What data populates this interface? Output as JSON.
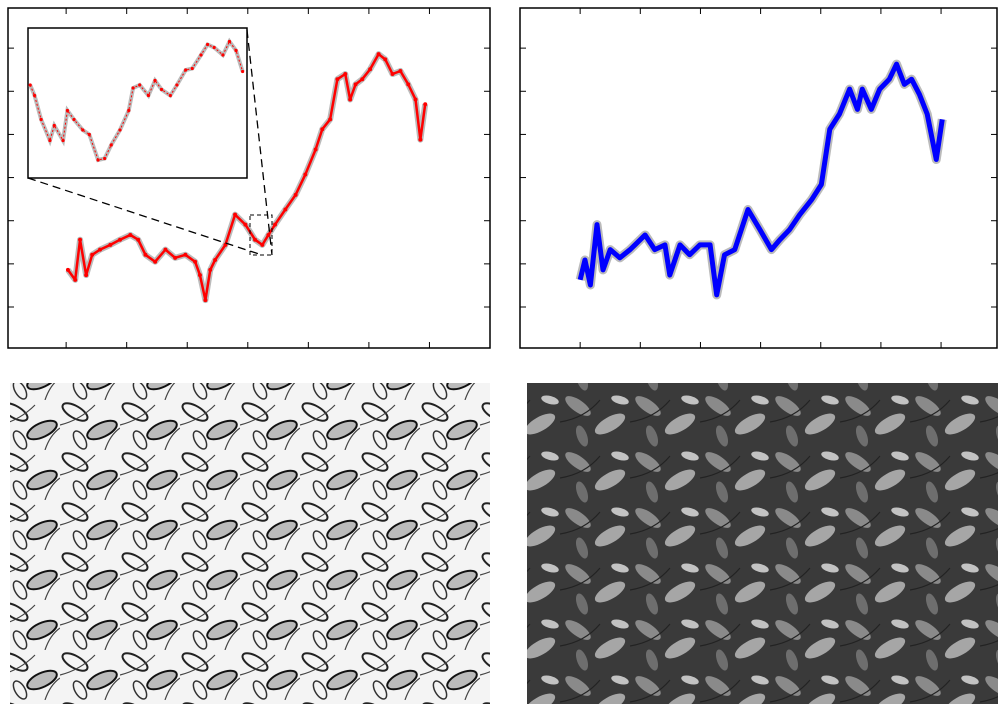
{
  "chart_data": [
    {
      "type": "line",
      "x": [
        0.03,
        0.15,
        0.23,
        0.33,
        0.43,
        0.56,
        0.73,
        0.89,
        1.06,
        1.19,
        1.31,
        1.47,
        1.64,
        1.8,
        1.97,
        2.13,
        2.21,
        2.3,
        2.38,
        2.46,
        2.63,
        2.79,
        2.96,
        3.12,
        3.24,
        3.34,
        3.45,
        3.62,
        3.79,
        3.95,
        4.12,
        4.23,
        4.36,
        4.48,
        4.61,
        4.69,
        4.78,
        4.89,
        5.02,
        5.16,
        5.27,
        5.39,
        5.52,
        5.65,
        5.77,
        5.85,
        5.93
      ],
      "series": [
        {
          "color": "#ff0000",
          "values": [
            0.86,
            0.63,
            1.56,
            0.74,
            1.21,
            1.33,
            1.44,
            1.56,
            1.67,
            1.56,
            1.21,
            1.05,
            1.33,
            1.14,
            1.21,
            1.05,
            0.74,
            0.16,
            0.86,
            1.09,
            1.44,
            2.14,
            1.91,
            1.56,
            1.44,
            1.67,
            1.91,
            2.26,
            2.6,
            3.07,
            3.65,
            4.12,
            4.35,
            5.28,
            5.4,
            4.81,
            5.16,
            5.28,
            5.51,
            5.86,
            5.74,
            5.4,
            5.47,
            5.16,
            4.81,
            3.88,
            4.7
          ]
        }
      ],
      "xlim": [
        -0.96,
        7.0
      ],
      "ylim": [
        -0.95,
        6.93
      ],
      "xticks": [
        0,
        1,
        2,
        3,
        4,
        5,
        6
      ],
      "yticks": [
        0,
        1,
        2,
        3,
        4,
        5,
        6
      ],
      "inset": {
        "x": [
          0.01,
          0.03,
          0.06,
          0.1,
          0.12,
          0.16,
          0.18,
          0.21,
          0.25,
          0.28,
          0.32,
          0.35,
          0.38,
          0.42,
          0.46,
          0.48,
          0.51,
          0.55,
          0.58,
          0.61,
          0.65,
          0.68,
          0.72,
          0.75,
          0.79,
          0.82,
          0.85,
          0.89,
          0.92,
          0.95,
          0.98
        ],
        "values": [
          0.62,
          0.55,
          0.39,
          0.25,
          0.35,
          0.25,
          0.45,
          0.39,
          0.32,
          0.29,
          0.12,
          0.13,
          0.22,
          0.32,
          0.45,
          0.6,
          0.62,
          0.55,
          0.65,
          0.59,
          0.55,
          0.62,
          0.72,
          0.73,
          0.82,
          0.89,
          0.87,
          0.82,
          0.91,
          0.85,
          0.71
        ],
        "xlim": [
          0,
          1
        ],
        "ylim": [
          0,
          1
        ]
      }
    },
    {
      "type": "line",
      "x": [
        0,
        0.08,
        0.17,
        0.28,
        0.38,
        0.5,
        0.66,
        0.83,
        1.08,
        1.24,
        1.41,
        1.49,
        1.66,
        1.82,
        1.99,
        2.16,
        2.27,
        2.4,
        2.57,
        2.79,
        2.99,
        3.18,
        3.32,
        3.48,
        3.65,
        3.85,
        4.01,
        4.15,
        4.31,
        4.48,
        4.61,
        4.69,
        4.84,
        4.98,
        5.14,
        5.26,
        5.39,
        5.51,
        5.64,
        5.77,
        5.92,
        6.02
      ],
      "series": [
        {
          "color": "#0000ff",
          "values": [
            0.63,
            1.09,
            0.51,
            1.91,
            0.86,
            1.33,
            1.14,
            1.33,
            1.67,
            1.33,
            1.44,
            0.74,
            1.44,
            1.21,
            1.44,
            1.44,
            0.28,
            1.21,
            1.33,
            2.26,
            1.79,
            1.33,
            1.56,
            1.79,
            2.14,
            2.49,
            2.84,
            4.12,
            4.47,
            5.05,
            4.58,
            5.05,
            4.58,
            5.05,
            5.28,
            5.63,
            5.16,
            5.28,
            4.93,
            4.47,
            3.42,
            4.35
          ]
        }
      ],
      "xlim": [
        -1.0,
        6.93
      ],
      "ylim": [
        -0.95,
        6.93
      ],
      "xticks": [
        0,
        1,
        2,
        3,
        4,
        5,
        6
      ],
      "yticks": [
        0,
        1,
        2,
        3,
        4,
        5,
        6
      ]
    }
  ]
}
